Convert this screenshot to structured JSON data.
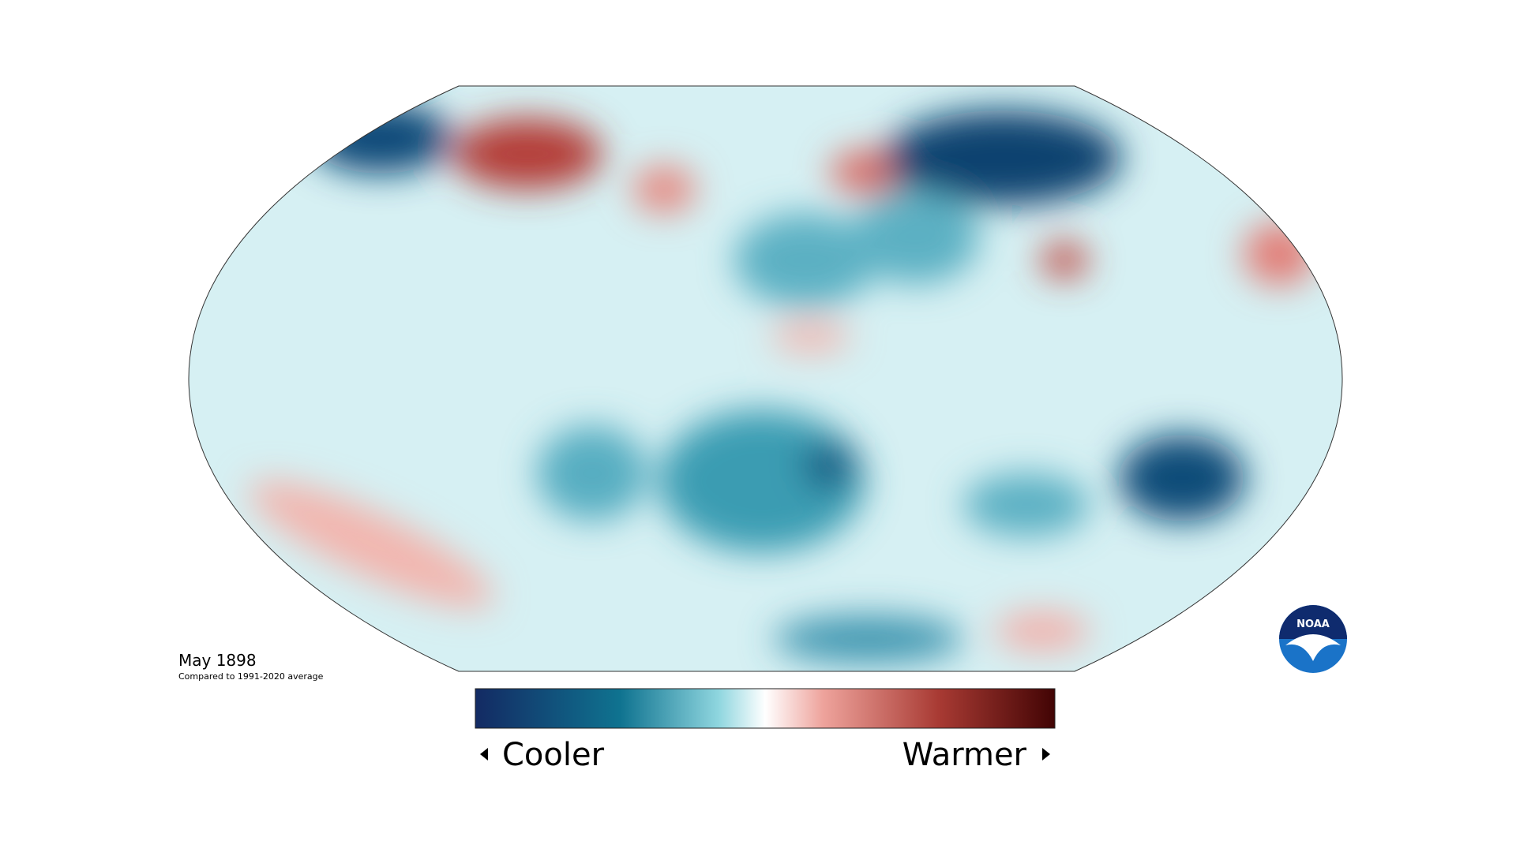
{
  "map": {
    "title": "May 1898",
    "subtitle": "Compared to 1991-2020 average"
  },
  "legend": {
    "low_label": "Cooler",
    "high_label": "Warmer"
  },
  "logo": {
    "text": "NOAA"
  }
}
